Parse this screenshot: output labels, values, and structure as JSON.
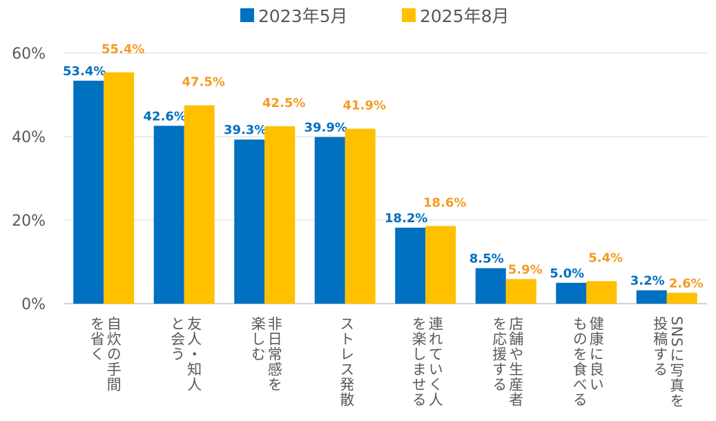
{
  "chart_data": {
    "type": "bar",
    "title": "",
    "xlabel": "",
    "ylabel": "",
    "ylim": [
      0,
      60
    ],
    "yticks": [
      "0%",
      "20%",
      "40%",
      "60%"
    ],
    "ytick_values": [
      0,
      20,
      40,
      60
    ],
    "grid": true,
    "legend_position": "top-center",
    "categories": [
      [
        "自炊の手間",
        "を省く"
      ],
      [
        "友人・知人",
        "と会う"
      ],
      [
        "非日常感を",
        "楽しむ"
      ],
      [
        "ストレス発散"
      ],
      [
        "連れていく人",
        "を楽しませる"
      ],
      [
        "店舗や生産者",
        "を応援する"
      ],
      [
        "健康に良い",
        "ものを食べる"
      ],
      [
        "SNSに写真を",
        "投稿する"
      ]
    ],
    "series": [
      {
        "name": "2023年5月",
        "color": "#0070C0",
        "label_color": "#0070C0",
        "values": [
          53.4,
          42.6,
          39.3,
          39.9,
          18.2,
          8.5,
          5.0,
          3.2
        ],
        "labels": [
          "53.4%",
          "42.6%",
          "39.3%",
          "39.9%",
          "18.2%",
          "8.5%",
          "5.0%",
          "3.2%"
        ]
      },
      {
        "name": "2025年8月",
        "color": "#FFC000",
        "label_color": "#F59A23",
        "values": [
          55.4,
          47.5,
          42.5,
          41.9,
          18.6,
          5.9,
          5.4,
          2.6
        ],
        "labels": [
          "55.4%",
          "47.5%",
          "42.5%",
          "41.9%",
          "18.6%",
          "5.9%",
          "5.4%",
          "2.6%"
        ]
      }
    ]
  }
}
